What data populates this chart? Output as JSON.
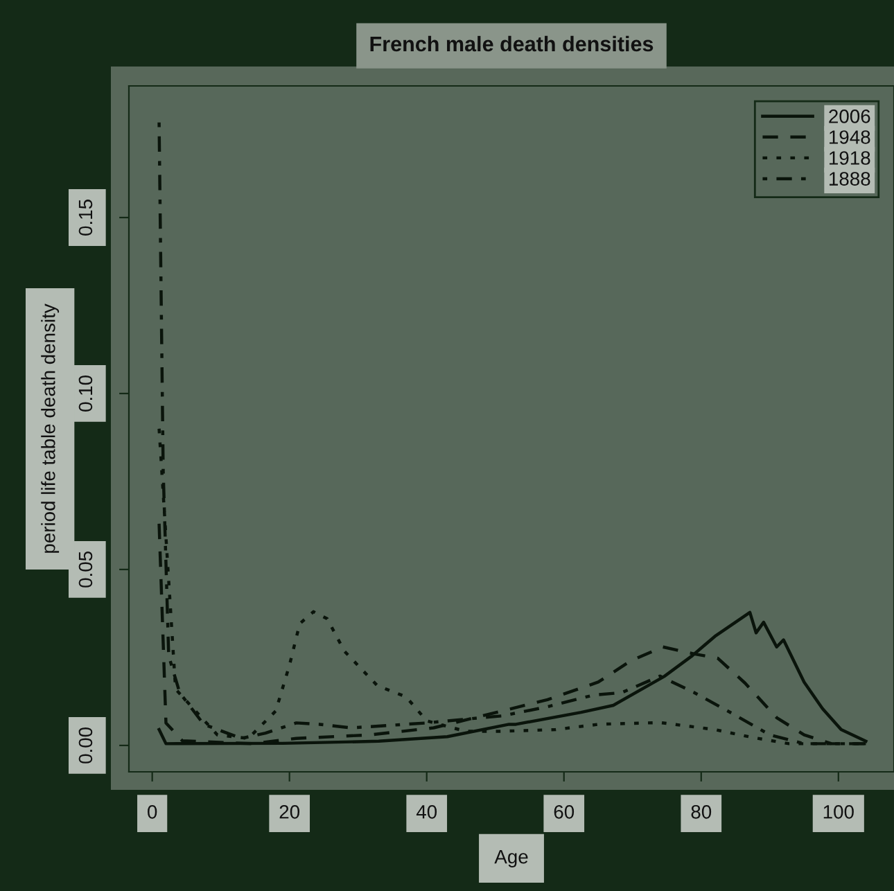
{
  "chart_data": {
    "type": "line",
    "title": "French male death densities",
    "xlabel": "Age",
    "ylabel": "period life table death density",
    "xlim": [
      -3.4,
      108.1
    ],
    "ylim": [
      -0.0075,
      0.1874
    ],
    "xticks": [
      0,
      20,
      40,
      60,
      80,
      100
    ],
    "yticks": [
      {
        "value": 0,
        "label": "0.00"
      },
      {
        "value": 0.05,
        "label": "0.05"
      },
      {
        "value": 0.1,
        "label": "0.10"
      },
      {
        "value": 0.15,
        "label": "0.15"
      }
    ],
    "grid": false,
    "legend": "top right",
    "marker": "none",
    "series": [
      {
        "name": "2006",
        "color": "#0a140b",
        "line_style": "solid",
        "x": [
          1,
          2,
          19,
          33,
          43,
          52,
          53,
          62.5,
          67.2,
          74.6,
          78.7,
          82,
          87.1,
          88,
          89.1,
          91,
          92,
          95,
          97.7,
          100.4,
          104
        ],
        "values": [
          0.0045,
          0.0005,
          0.0006,
          0.0012,
          0.0025,
          0.006,
          0.006,
          0.0094,
          0.0114,
          0.0196,
          0.0255,
          0.031,
          0.0378,
          0.032,
          0.035,
          0.028,
          0.03,
          0.018,
          0.0104,
          0.0045,
          0.0012
        ]
      },
      {
        "name": "1948",
        "color": "#0a140b",
        "line_style": "dashed",
        "x": [
          1,
          2,
          4.4,
          14.5,
          21,
          31.7,
          41,
          51,
          57.6,
          65,
          69.7,
          74.4,
          79,
          82.4,
          86.4,
          91,
          95,
          99,
          104
        ],
        "values": [
          0.063,
          0.0064,
          0.0013,
          0.0005,
          0.002,
          0.003,
          0.005,
          0.0098,
          0.013,
          0.018,
          0.024,
          0.028,
          0.026,
          0.0248,
          0.0177,
          0.0079,
          0.003,
          0.0005,
          0.0005
        ]
      },
      {
        "name": "1918",
        "color": "#0a140b",
        "line_style": "dotted",
        "x": [
          1,
          3.4,
          9.5,
          14,
          18,
          20,
          21.5,
          23.5,
          25.5,
          28,
          32.8,
          37,
          40,
          45.7,
          50.5,
          58.8,
          65,
          74,
          82,
          87.4,
          92.8,
          104
        ],
        "values": [
          0.09,
          0.016,
          0.003,
          0.002,
          0.0098,
          0.0228,
          0.0346,
          0.038,
          0.036,
          0.0268,
          0.017,
          0.0138,
          0.007,
          0.004,
          0.004,
          0.0045,
          0.006,
          0.0065,
          0.0045,
          0.0023,
          0.0005,
          0.0005
        ]
      },
      {
        "name": "1888",
        "color": "#0a140b",
        "line_style": "dashdot",
        "x": [
          1,
          1.6,
          2.4,
          4,
          7.5,
          13,
          16.5,
          21,
          24.4,
          29,
          40,
          48,
          51,
          57.6,
          64.3,
          68.4,
          74,
          79,
          84.6,
          90,
          95,
          104
        ],
        "values": [
          0.177,
          0.078,
          0.0255,
          0.015,
          0.006,
          0.002,
          0.0035,
          0.0064,
          0.006,
          0.005,
          0.0064,
          0.0079,
          0.0084,
          0.011,
          0.0143,
          0.015,
          0.0197,
          0.015,
          0.009,
          0.003,
          0.0005,
          0.0005
        ]
      }
    ]
  }
}
